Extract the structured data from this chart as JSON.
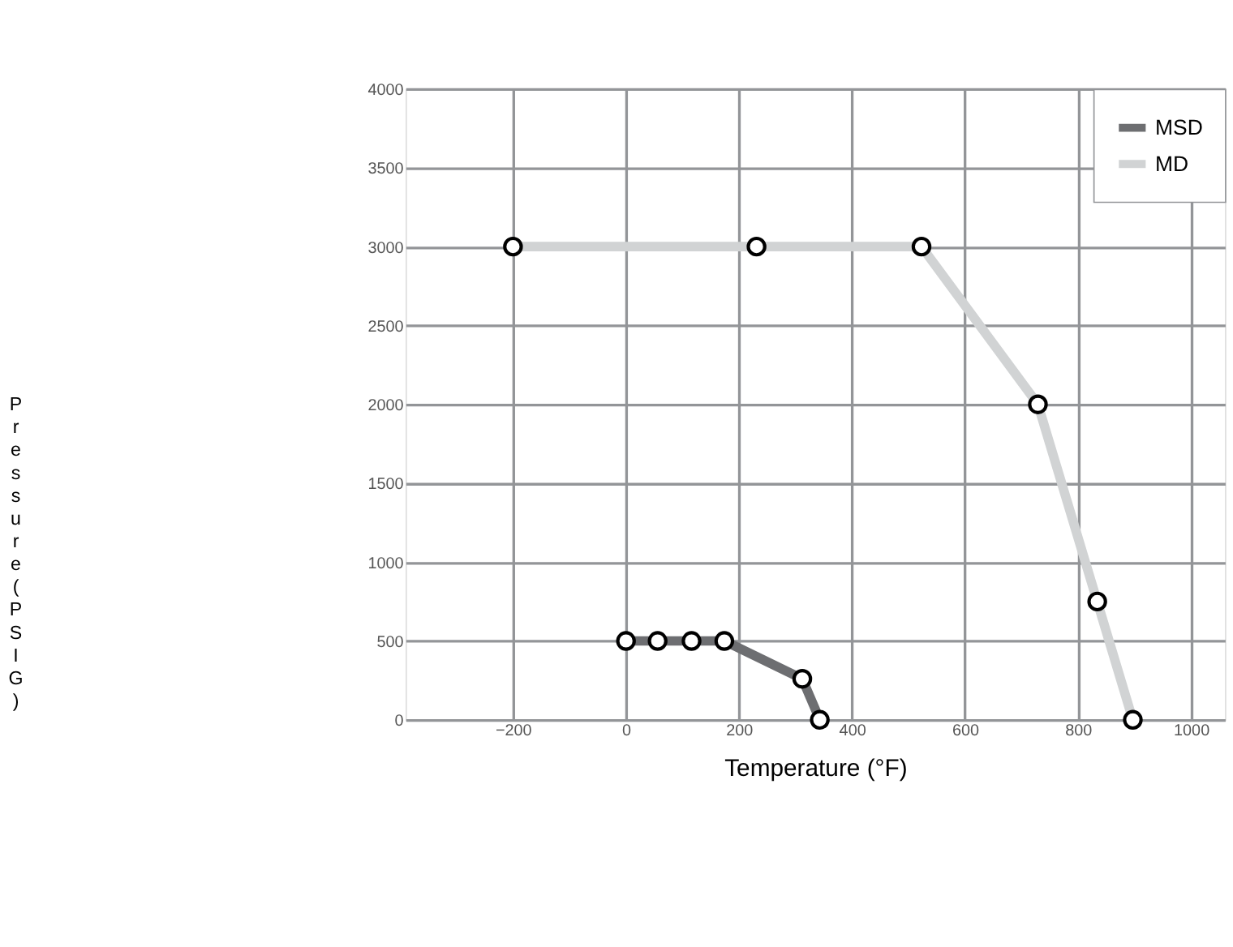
{
  "chart_data": {
    "type": "line",
    "xlabel": "Temperature (°F)",
    "ylabel": "Pressure (PSIG)",
    "xlim": [
      -390,
      1060
    ],
    "ylim": [
      0,
      4000
    ],
    "xticks": [
      -200,
      0,
      200,
      400,
      600,
      800,
      1000
    ],
    "yticks": [
      0,
      500,
      1000,
      1500,
      2000,
      2500,
      3000,
      3500,
      4000
    ],
    "grid": true,
    "legend": "top right",
    "marker": "circle",
    "line_style": "solid",
    "series": [
      {
        "name": "MSD",
        "color": "#6d6e71",
        "x": [
          0,
          56,
          116,
          174,
          312,
          343
        ],
        "values": [
          500,
          500,
          500,
          500,
          260,
          0
        ]
      },
      {
        "name": "MD",
        "color": "#d1d3d4",
        "x": [
          -200,
          231,
          523,
          729,
          834,
          897
        ],
        "values": [
          3000,
          3000,
          3000,
          2000,
          750,
          0
        ]
      }
    ]
  }
}
